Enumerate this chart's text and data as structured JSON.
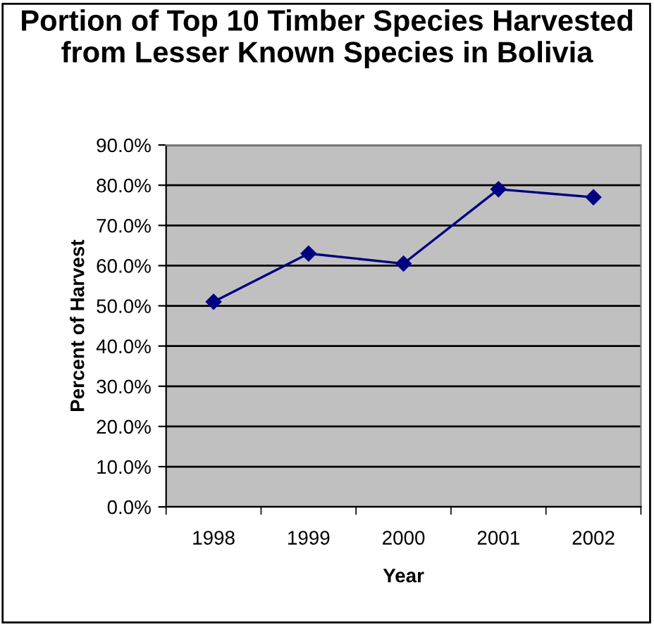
{
  "chart_data": {
    "type": "line",
    "title": "Portion of Top 10 Timber Species Harvested from Lesser Known Species in Bolivia",
    "xlabel": "Year",
    "ylabel": "Percent of Harvest",
    "categories": [
      "1998",
      "1999",
      "2000",
      "2001",
      "2002"
    ],
    "series": [
      {
        "color": "#000080",
        "values": [
          51,
          63,
          60.5,
          79,
          77
        ]
      }
    ],
    "ylim": [
      0,
      90
    ],
    "yticks": [
      {
        "value": 0,
        "label": "0.0%"
      },
      {
        "value": 10,
        "label": "10.0%"
      },
      {
        "value": 20,
        "label": "20.0%"
      },
      {
        "value": 30,
        "label": "30.0%"
      },
      {
        "value": 40,
        "label": "40.0%"
      },
      {
        "value": 50,
        "label": "50.0%"
      },
      {
        "value": 60,
        "label": "60.0%"
      },
      {
        "value": 70,
        "label": "70.0%"
      },
      {
        "value": 80,
        "label": "80.0%"
      },
      {
        "value": 90,
        "label": "90.0%"
      }
    ],
    "grid": "y",
    "marker": "diamond",
    "line_style": "solid",
    "legend": false
  }
}
